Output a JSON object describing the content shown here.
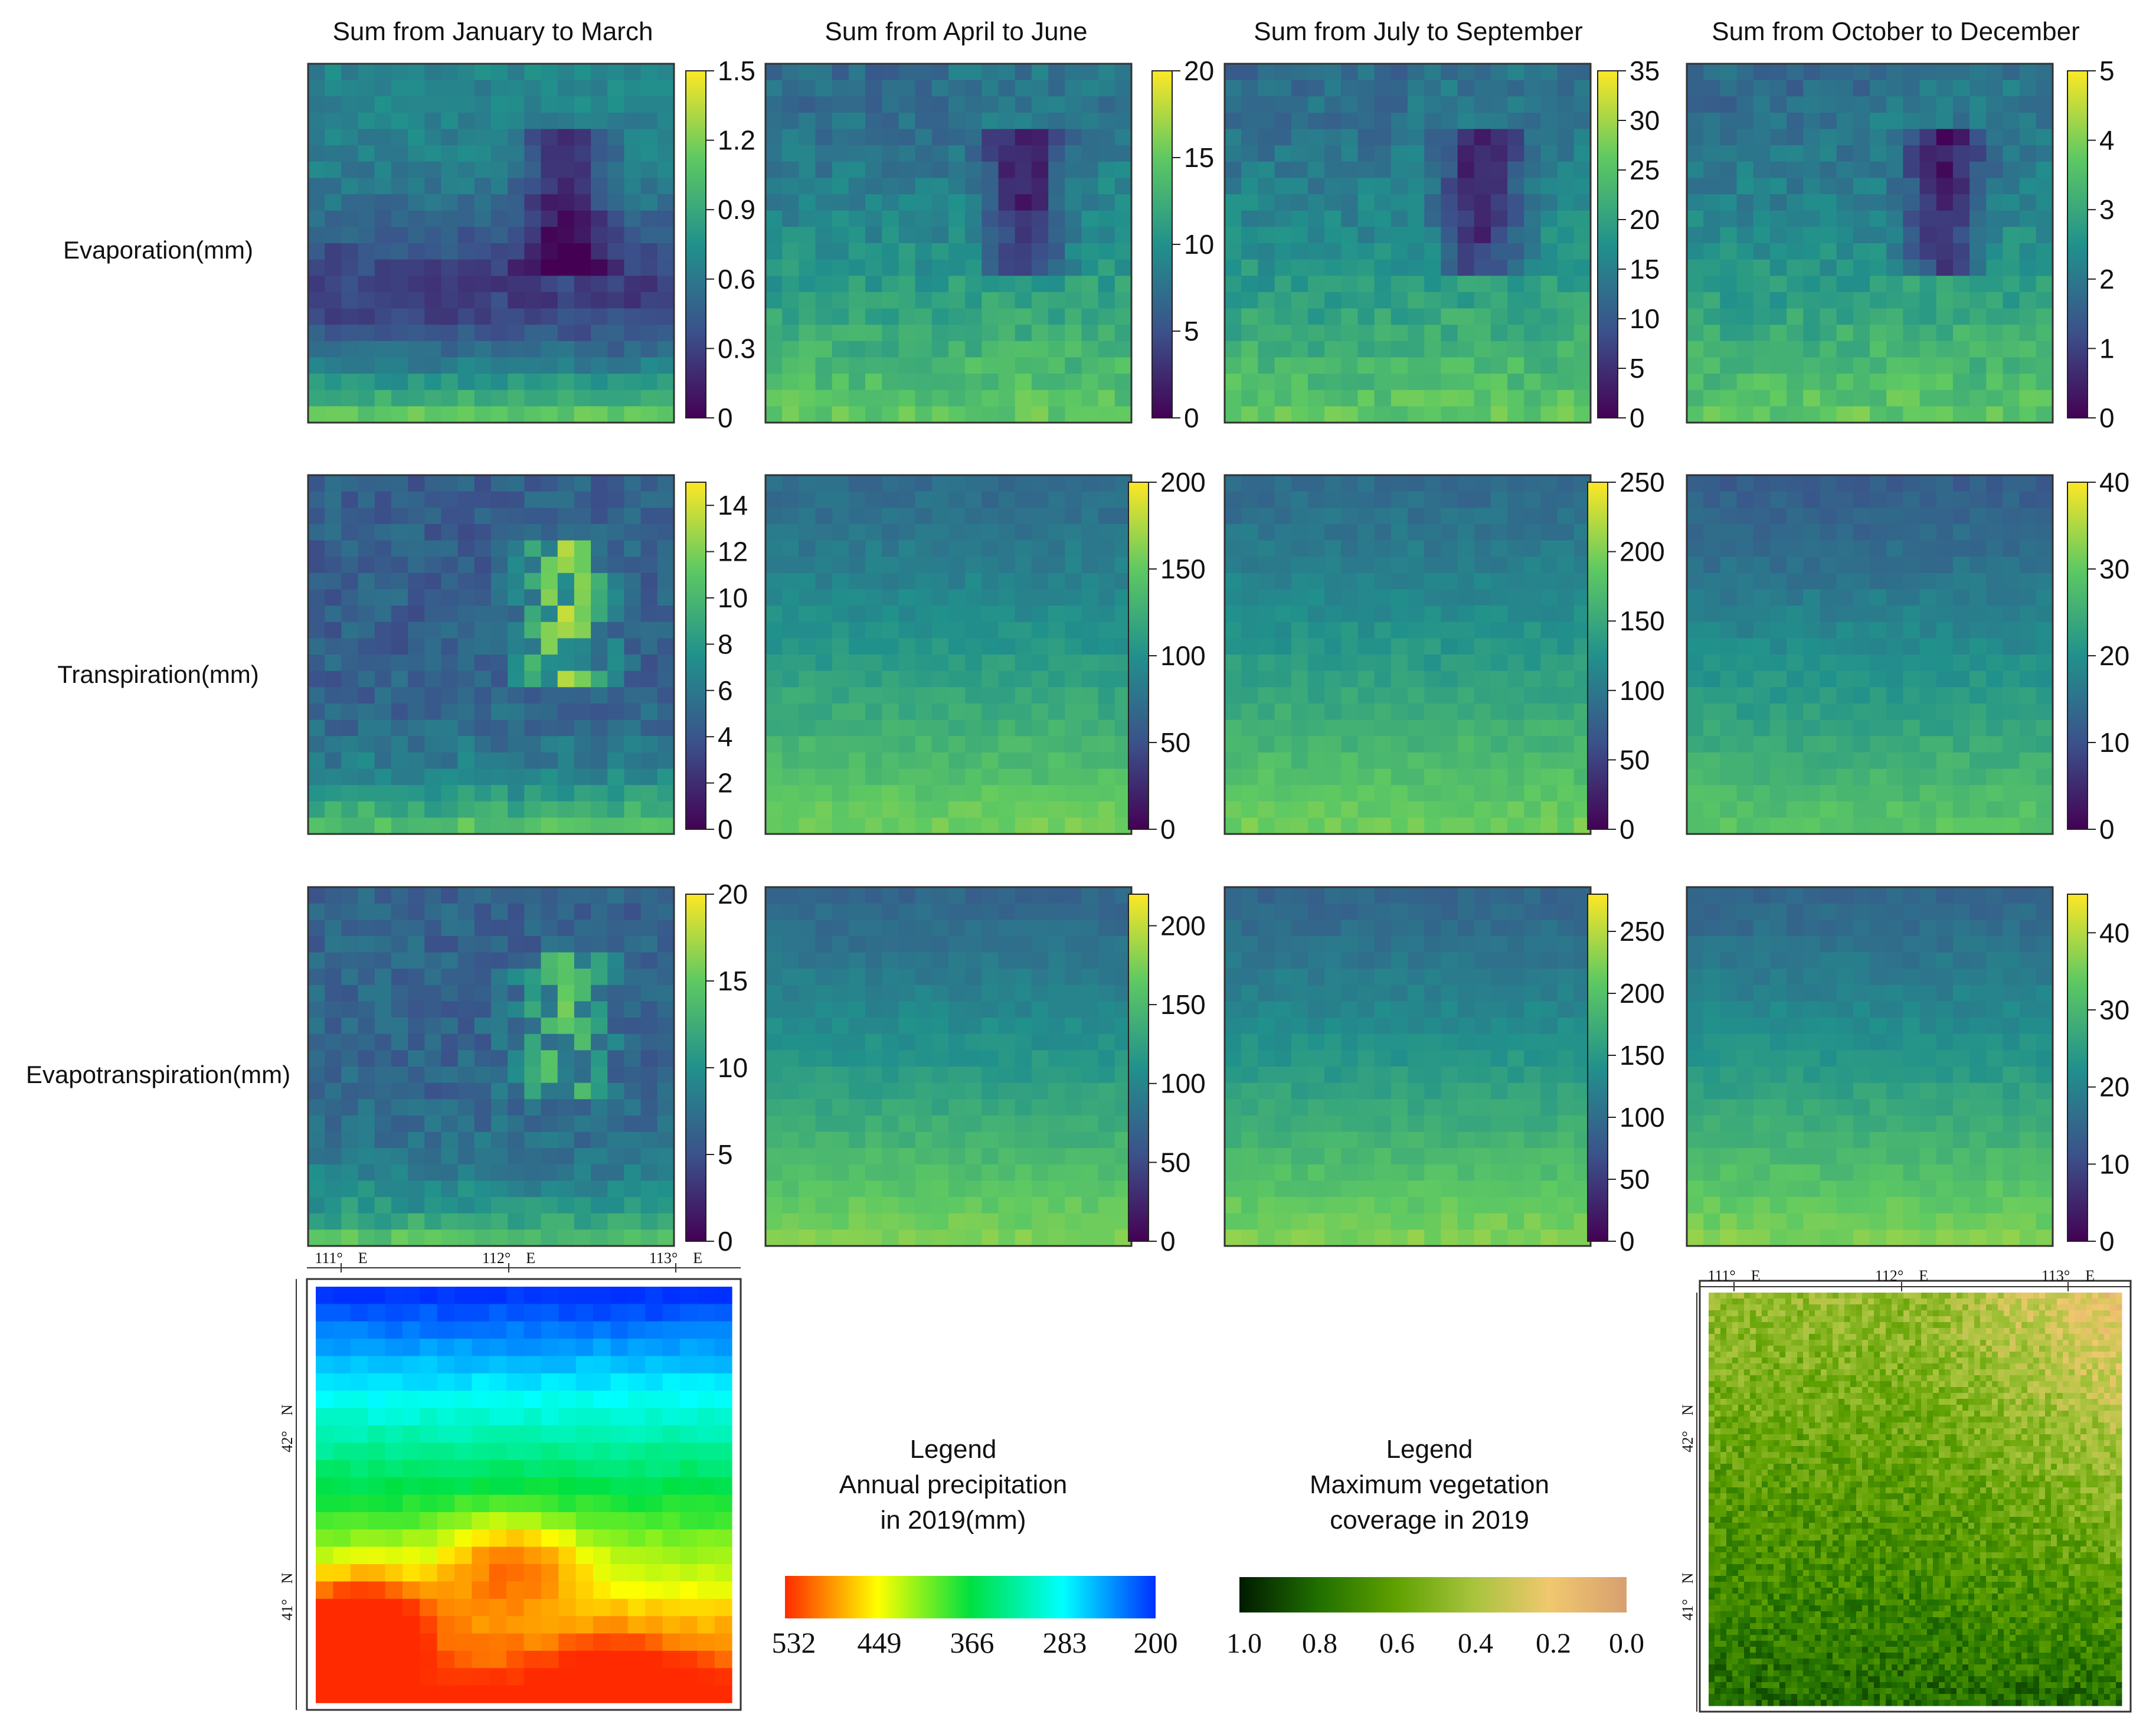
{
  "columns": [
    "Sum from January to March",
    "Sum from April to June",
    "Sum from July to September",
    "Sum from October to December"
  ],
  "rows": [
    {
      "label": "Evaporation(mm)",
      "colorbars": [
        {
          "max": 1.5,
          "ticks": [
            "0",
            "0.3",
            "0.6",
            "0.9",
            "1.2",
            "1.5"
          ]
        },
        {
          "max": 20,
          "ticks": [
            "0",
            "5",
            "10",
            "15",
            "20"
          ]
        },
        {
          "max": 35,
          "ticks": [
            "0",
            "5",
            "10",
            "15",
            "20",
            "25",
            "30",
            "35"
          ]
        },
        {
          "max": 5,
          "ticks": [
            "0",
            "1",
            "2",
            "3",
            "4",
            "5"
          ]
        }
      ]
    },
    {
      "label": "Transpiration(mm)",
      "colorbars": [
        {
          "max": 15,
          "ticks": [
            "0",
            "2",
            "4",
            "6",
            "8",
            "10",
            "12",
            "14"
          ]
        },
        {
          "max": 200,
          "ticks": [
            "0",
            "50",
            "100",
            "150",
            "200"
          ]
        },
        {
          "max": 250,
          "ticks": [
            "0",
            "50",
            "100",
            "150",
            "200",
            "250"
          ]
        },
        {
          "max": 40,
          "ticks": [
            "0",
            "10",
            "20",
            "30",
            "40"
          ]
        }
      ]
    },
    {
      "label": "Evapotranspiration(mm)",
      "colorbars": [
        {
          "max": 20,
          "ticks": [
            "0",
            "5",
            "10",
            "15",
            "20"
          ]
        },
        {
          "max": 220,
          "ticks": [
            "0",
            "50",
            "100",
            "150",
            "200"
          ]
        },
        {
          "max": 280,
          "ticks": [
            "0",
            "50",
            "100",
            "150",
            "200",
            "250"
          ]
        },
        {
          "max": 45,
          "ticks": [
            "0",
            "10",
            "20",
            "30",
            "40"
          ]
        }
      ]
    }
  ],
  "map_axes": {
    "lon_labels": [
      "111°　E",
      "112°　E",
      "113°　E"
    ],
    "lat_labels": [
      "42°　N",
      "41°　N"
    ]
  },
  "precip_legend": {
    "title_lines": [
      "Legend",
      "Annual precipitation",
      "in 2019(mm)"
    ],
    "ticks": [
      "532",
      "449",
      "366",
      "283",
      "200"
    ],
    "colors": [
      "#ff2a00",
      "#ffff00",
      "#00e040",
      "#00ffff",
      "#0030ff"
    ]
  },
  "veg_legend": {
    "title_lines": [
      "Legend",
      "Maximum vegetation",
      "coverage in 2019"
    ],
    "ticks": [
      "1.0",
      "0.8",
      "0.6",
      "0.4",
      "0.2",
      "0.0"
    ],
    "colors": [
      "#001a00",
      "#1f6e00",
      "#5ea000",
      "#a6c33c",
      "#f0c86e",
      "#d7a070"
    ]
  }
}
